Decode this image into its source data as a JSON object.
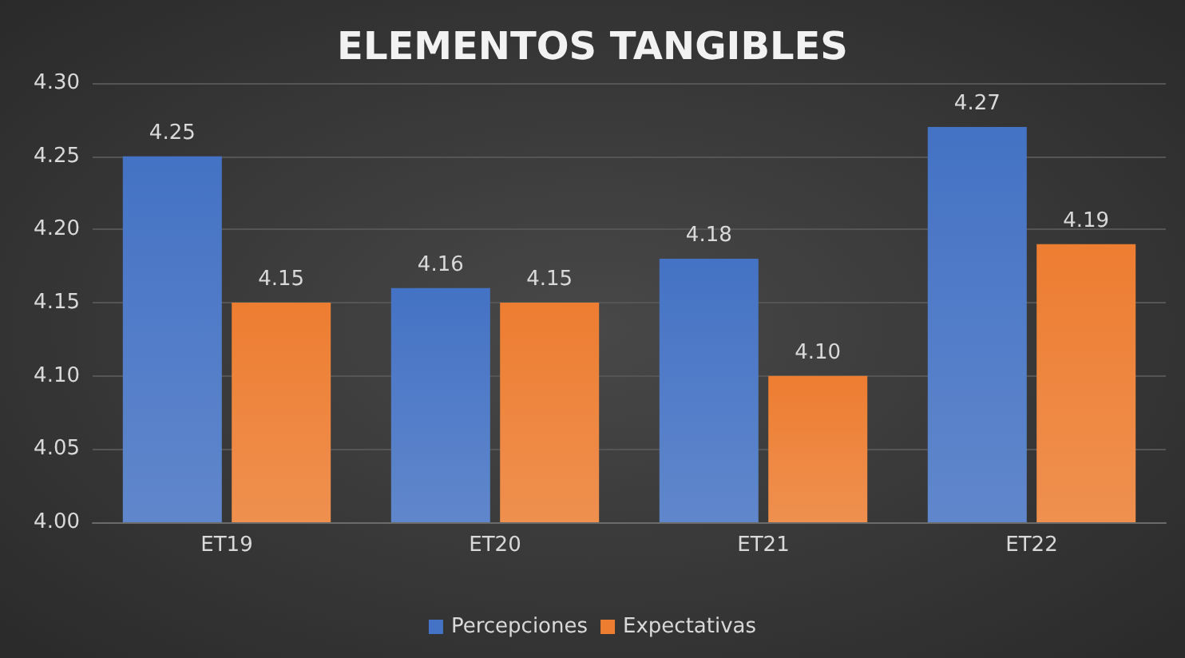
{
  "chart_data": {
    "type": "bar",
    "title": "ELEMENTOS TANGIBLES",
    "categories": [
      "ET19",
      "ET20",
      "ET21",
      "ET22"
    ],
    "series": [
      {
        "name": "Percepciones",
        "color": "#4472c4",
        "values": [
          4.25,
          4.16,
          4.18,
          4.27
        ],
        "value_labels": [
          "4.25",
          "4.16",
          "4.18",
          "4.27"
        ]
      },
      {
        "name": "Expectativas",
        "color": "#ed7d31",
        "values": [
          4.15,
          4.15,
          4.1,
          4.19
        ],
        "value_labels": [
          "4.15",
          "4.15",
          "4.10",
          "4.19"
        ]
      }
    ],
    "ylim": [
      4.0,
      4.3
    ],
    "yticks": [
      {
        "value": 4.0,
        "label": "4.00"
      },
      {
        "value": 4.05,
        "label": "4.05"
      },
      {
        "value": 4.1,
        "label": "4.10"
      },
      {
        "value": 4.15,
        "label": "4.15"
      },
      {
        "value": 4.2,
        "label": "4.20"
      },
      {
        "value": 4.25,
        "label": "4.25"
      },
      {
        "value": 4.3,
        "label": "4.30"
      }
    ],
    "grid": "y",
    "legend": "bottom"
  }
}
